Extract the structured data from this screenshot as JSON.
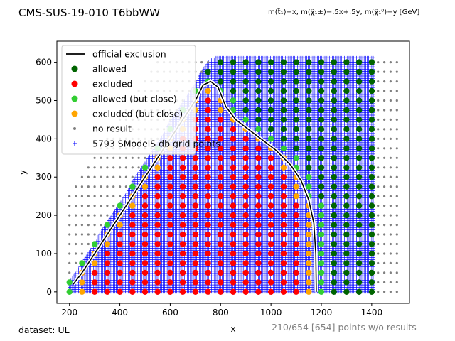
{
  "header": {
    "title": "CMS-SUS-19-010 T6bbWW",
    "subtitle": "m(t̃₁)=x, m(χ̃₁±)=.5x+.5y, m(χ̃₁⁰)=y [GeV]"
  },
  "footer": {
    "dataset": "dataset: UL",
    "no_result_note": "210/654 [654] points w/o results"
  },
  "chart_data": {
    "type": "scatter",
    "xlabel": "x",
    "ylabel": "y",
    "xlim": [
      150,
      1550
    ],
    "ylim": [
      -30,
      655
    ],
    "xticks": [
      200,
      400,
      600,
      800,
      1000,
      1200,
      1400
    ],
    "yticks": [
      0,
      100,
      200,
      300,
      400,
      500,
      600
    ],
    "grid": false,
    "legend_position": "upper-left",
    "legend": [
      {
        "key": "official",
        "label": "official exclusion",
        "marker": "line",
        "color": "#000000"
      },
      {
        "key": "allowed",
        "label": "allowed",
        "marker": "circle",
        "color": "#006400"
      },
      {
        "key": "excluded",
        "label": "excluded",
        "marker": "circle",
        "color": "#ff0000"
      },
      {
        "key": "allowed_close",
        "label": "allowed (but close)",
        "marker": "circle",
        "color": "#32cd32"
      },
      {
        "key": "excluded_close",
        "label": "excluded (but close)",
        "marker": "circle",
        "color": "#ffa500"
      },
      {
        "key": "no_result",
        "label": "no result",
        "marker": "dot",
        "color": "#808080"
      },
      {
        "key": "grid_points",
        "label": "5793 SModelS db grid points",
        "marker": "plus",
        "color": "#0000ff"
      }
    ],
    "official_exclusion": [
      [
        215,
        20
      ],
      [
        250,
        50
      ],
      [
        300,
        100
      ],
      [
        350,
        150
      ],
      [
        400,
        200
      ],
      [
        450,
        250
      ],
      [
        500,
        300
      ],
      [
        550,
        350
      ],
      [
        600,
        400
      ],
      [
        650,
        450
      ],
      [
        700,
        500
      ],
      [
        730,
        540
      ],
      [
        760,
        550
      ],
      [
        790,
        535
      ],
      [
        820,
        485
      ],
      [
        860,
        450
      ],
      [
        900,
        430
      ],
      [
        960,
        400
      ],
      [
        1020,
        370
      ],
      [
        1080,
        330
      ],
      [
        1120,
        290
      ],
      [
        1150,
        240
      ],
      [
        1170,
        180
      ],
      [
        1178,
        100
      ],
      [
        1180,
        0
      ]
    ],
    "grid_points_region": {
      "x_start": 200,
      "x_end": 1410,
      "x_step": 6,
      "y_start": 0,
      "y_step": 6,
      "boundary": [
        [
          200,
          0
        ],
        [
          1410,
          0
        ],
        [
          1410,
          615
        ],
        [
          810,
          615
        ],
        [
          760,
          610
        ],
        [
          200,
          25
        ]
      ]
    },
    "no_result_grid": {
      "x_start": 200,
      "x_end": 1500,
      "x_step": 25,
      "y_start": 0,
      "y_end": 600,
      "y_step": 25
    }
  }
}
